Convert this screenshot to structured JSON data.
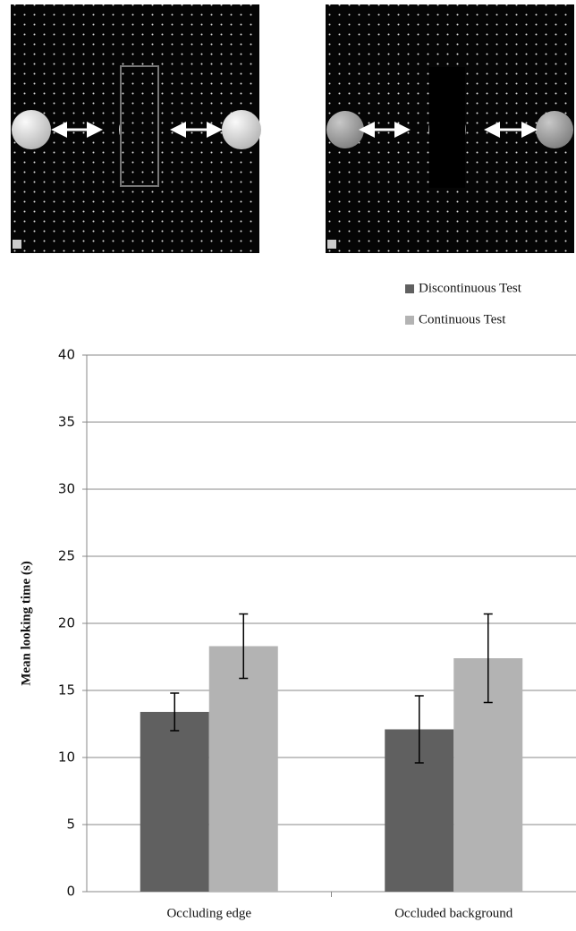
{
  "chart_data": {
    "type": "bar",
    "y_label": "Mean looking time (s)",
    "categories": [
      "Occluding edge",
      "Occluded background"
    ],
    "series": [
      {
        "name": "Discontinuous Test",
        "color": "#606060",
        "values": [
          13.4,
          12.1
        ],
        "errors": [
          1.4,
          2.5
        ]
      },
      {
        "name": "Continuous Test",
        "color": "#b3b3b3",
        "values": [
          18.3,
          17.4
        ],
        "errors": [
          2.4,
          3.3
        ]
      }
    ],
    "ylim": [
      0,
      40
    ],
    "yticks": [
      0,
      5,
      10,
      15,
      20,
      25,
      30,
      35,
      40
    ],
    "grid": true
  }
}
